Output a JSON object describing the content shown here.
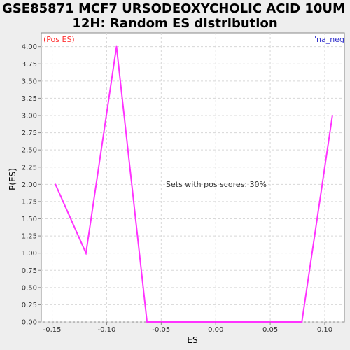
{
  "title_line1": "GSE85871 MCF7 URSODEOXYCHOLIC ACID 10UM",
  "title_line2": "12H: Random ES distribution",
  "left_corner_label": "(Pos ES)",
  "right_corner_label": "'na_neg",
  "annotation": "Sets with pos scores: 30%",
  "colors": {
    "line": "#ff33ff",
    "pos_label": "#ff3333",
    "neg_label": "#3333cc",
    "grid": "#d8d8d8",
    "plot_bg": "#ffffff",
    "axis": "#888888"
  },
  "chart_data": {
    "type": "line",
    "title": "GSE85871 MCF7 URSODEOXYCHOLIC ACID 10UM 12H: Random ES distribution",
    "xlabel": "ES",
    "ylabel": "P(ES)",
    "xlim": [
      -0.16,
      0.118
    ],
    "ylim": [
      0,
      4.2
    ],
    "grid": true,
    "x_ticks": [
      -0.15,
      -0.1,
      -0.05,
      0.0,
      0.05,
      0.1
    ],
    "x_tick_labels": [
      "-0.15",
      "-0.10",
      "-0.05",
      "0.00",
      "0.05",
      "0.10"
    ],
    "y_ticks": [
      0,
      0.25,
      0.5,
      0.75,
      1.0,
      1.25,
      1.5,
      1.75,
      2.0,
      2.25,
      2.5,
      2.75,
      3.0,
      3.25,
      3.5,
      3.75,
      4.0
    ],
    "y_tick_labels": [
      "0.00",
      "0.25",
      "0.50",
      "0.75",
      "1.00",
      "1.25",
      "1.50",
      "1.75",
      "2.00",
      "2.25",
      "2.50",
      "2.75",
      "3.00",
      "3.25",
      "3.50",
      "3.75",
      "4.00"
    ],
    "series": [
      {
        "x": [
          -0.147,
          -0.119,
          -0.091,
          -0.063,
          0.079,
          0.107
        ],
        "y": [
          2.0,
          1.0,
          4.0,
          0.0,
          0.0,
          3.0
        ]
      }
    ]
  }
}
